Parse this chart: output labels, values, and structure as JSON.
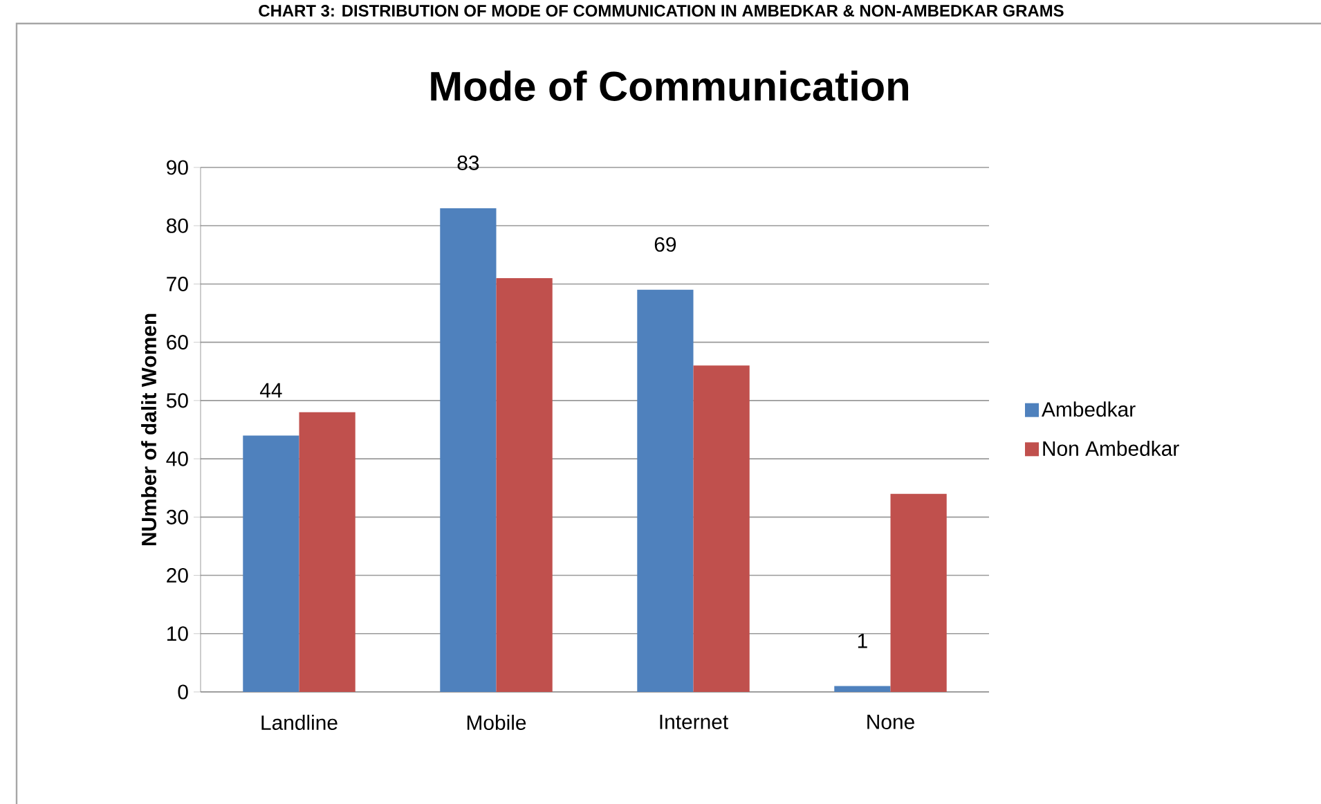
{
  "chart_data": {
    "type": "bar",
    "title": "Mode of Communication",
    "ylabel": "NUmber of dalit Women",
    "annotations": [
      "CHART 3: DISTRIBUTION OF MODE OF COMMUNICATION IN AMBEDKAR & NON-AMBEDKAR GRAMS"
    ],
    "categories": [
      "Landline",
      "Mobile",
      "Internet",
      "None"
    ],
    "series": [
      {
        "name": "Ambedkar",
        "color": "#4f81bd",
        "values": [
          44,
          83,
          69,
          1
        ],
        "value_labels": [
          "44",
          "83",
          "69",
          "1"
        ]
      },
      {
        "name": "Non Ambedkar",
        "color": "#c0504d",
        "values": [
          48,
          71,
          56,
          34
        ]
      }
    ],
    "ylim": [
      0,
      90
    ],
    "yticks": [
      0,
      10,
      20,
      30,
      40,
      50,
      60,
      70,
      80,
      90
    ],
    "grid": "y",
    "legend": "right"
  }
}
